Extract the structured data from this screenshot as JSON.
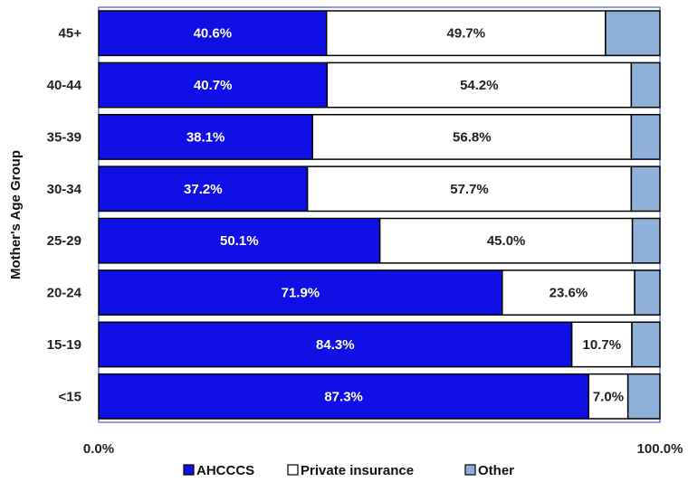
{
  "chart_data": {
    "type": "bar",
    "orientation": "horizontal",
    "stacked": "percent",
    "ylabel": "Mother's Age Group",
    "categories": [
      "45+",
      "40-44",
      "35-39",
      "30-34",
      "25-29",
      "20-24",
      "15-19",
      "<15"
    ],
    "series": [
      {
        "name": "AHCCCS",
        "color": "#1010e6",
        "label_color": "#ffffff",
        "values": [
          40.6,
          40.7,
          38.1,
          37.2,
          50.1,
          71.9,
          84.3,
          87.3
        ],
        "labels": [
          "40.6%",
          "40.7%",
          "38.1%",
          "37.2%",
          "50.1%",
          "71.9%",
          "84.3%",
          "87.3%"
        ]
      },
      {
        "name": "Private insurance",
        "color": "#ffffff",
        "label_color": "#222222",
        "values": [
          49.7,
          54.2,
          56.8,
          57.7,
          45.0,
          23.6,
          10.7,
          7.0
        ],
        "labels": [
          "49.7%",
          "54.2%",
          "56.8%",
          "57.7%",
          "45.0%",
          "23.6%",
          "10.7%",
          "7.0%"
        ]
      },
      {
        "name": "Other",
        "color": "#8fb0d8",
        "label_color": "#222222",
        "values": [
          9.7,
          5.1,
          5.1,
          5.1,
          4.9,
          4.5,
          5.0,
          5.7
        ],
        "labels": [
          "",
          "",
          "",
          "",
          "",
          "",
          "",
          ""
        ]
      }
    ],
    "xlim": [
      0,
      100
    ],
    "x_tick_labels": [
      "0.0%",
      "100.0%"
    ],
    "grid": false,
    "legend": "bottom",
    "plot_border_color": "#3333cc"
  }
}
